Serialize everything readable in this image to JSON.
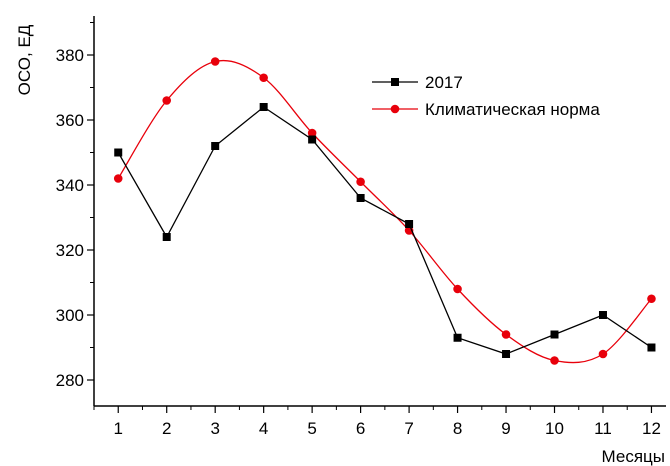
{
  "chart_data": {
    "type": "line",
    "title": "",
    "xlabel": "Месяцы",
    "ylabel": "ОСО, ЕД",
    "x": [
      1,
      2,
      3,
      4,
      5,
      6,
      7,
      8,
      9,
      10,
      11,
      12
    ],
    "xlim": [
      0.5,
      12.3
    ],
    "ylim": [
      272,
      392
    ],
    "yticks": [
      280,
      300,
      320,
      340,
      360,
      380
    ],
    "grid": false,
    "legend": "top-right",
    "series": [
      {
        "name": "2017",
        "color": "#000000",
        "marker": "square",
        "smooth": false,
        "values": [
          350,
          324,
          352,
          364,
          354,
          336,
          328,
          293,
          288,
          294,
          300,
          290
        ]
      },
      {
        "name": "Климатическая норма",
        "color": "#e8000b",
        "marker": "circle",
        "smooth": true,
        "values": [
          342,
          366,
          378,
          373,
          356,
          341,
          326,
          308,
          294,
          286,
          288,
          305
        ]
      }
    ]
  }
}
